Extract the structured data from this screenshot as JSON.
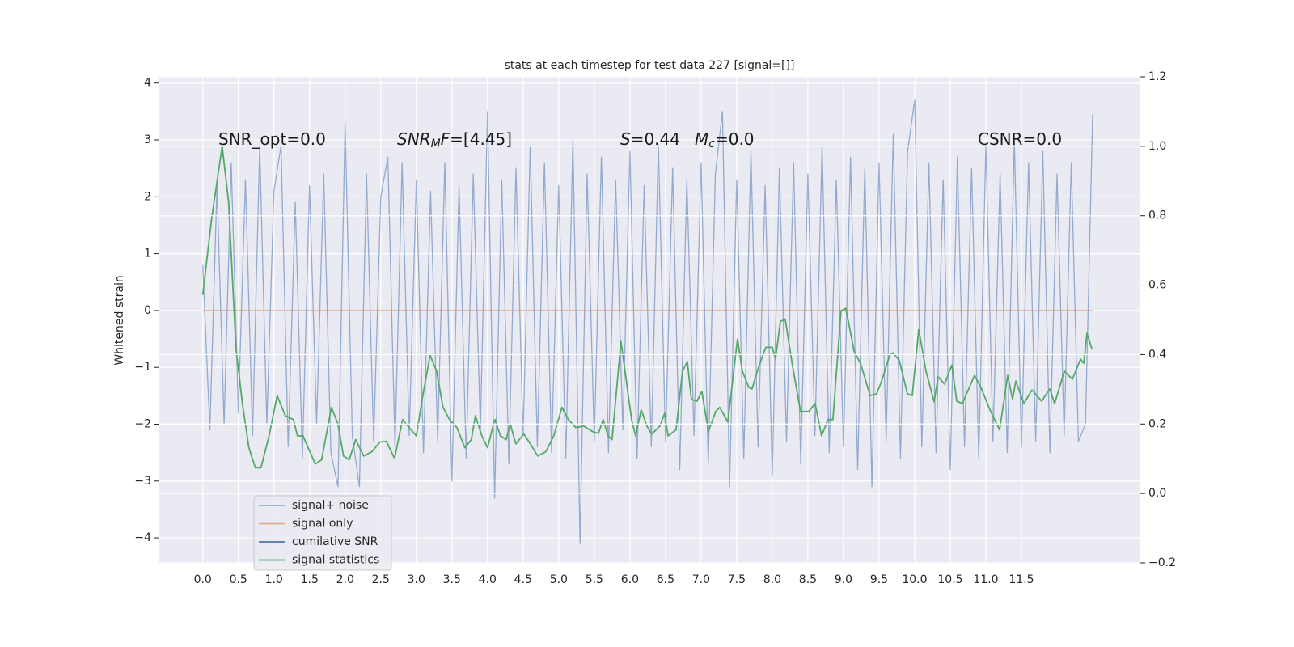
{
  "chart_data": {
    "type": "line",
    "title": "stats at each timestep for test data 227 [signal=[]]",
    "ylabel": "Whitened strain",
    "xlim": [
      -0.61,
      13.17
    ],
    "ylim": [
      -4.44,
      4.11
    ],
    "y2lim": [
      -0.2,
      1.2
    ],
    "grid": true,
    "legend": "lower left",
    "xticks": [
      {
        "value": 0,
        "label": "0.0"
      },
      {
        "value": 0.5,
        "label": "0.5"
      },
      {
        "value": 1,
        "label": "1.0"
      },
      {
        "value": 1.5,
        "label": "1.5"
      },
      {
        "value": 2,
        "label": "2.0"
      },
      {
        "value": 2.5,
        "label": "2.5"
      },
      {
        "value": 3,
        "label": "3.0"
      },
      {
        "value": 3.5,
        "label": "3.5"
      },
      {
        "value": 4,
        "label": "4.0"
      },
      {
        "value": 4.5,
        "label": "4.5"
      },
      {
        "value": 5,
        "label": "5.0"
      },
      {
        "value": 5.5,
        "label": "5.5"
      },
      {
        "value": 6,
        "label": "6.0"
      },
      {
        "value": 6.5,
        "label": "6.5"
      },
      {
        "value": 7,
        "label": "7.0"
      },
      {
        "value": 7.5,
        "label": "7.5"
      },
      {
        "value": 8,
        "label": "8.0"
      },
      {
        "value": 8.5,
        "label": "8.5"
      },
      {
        "value": 9,
        "label": "9.0"
      },
      {
        "value": 9.5,
        "label": "9.5"
      },
      {
        "value": 10,
        "label": "10.0"
      },
      {
        "value": 10.5,
        "label": "10.5"
      },
      {
        "value": 11,
        "label": "11.0"
      },
      {
        "value": 11.5,
        "label": "11.5"
      }
    ],
    "yticks": [
      {
        "value": -4,
        "label": "−4"
      },
      {
        "value": -3,
        "label": "−3"
      },
      {
        "value": -2,
        "label": "−2"
      },
      {
        "value": -1,
        "label": "−1"
      },
      0,
      1,
      2,
      3,
      4
    ],
    "y2ticks": [
      {
        "value": -0.2,
        "label": "−0.2"
      },
      {
        "value": 0,
        "label": "0.0"
      },
      0.2,
      0.4,
      0.6,
      0.8,
      {
        "value": 1,
        "label": "1.0"
      },
      1.2
    ],
    "annotations": [
      [
        "SNR_opt=0.0"
      ],
      [
        "SNR",
        "M",
        "F",
        "=[4.45]"
      ],
      [
        "S",
        "=0.44"
      ],
      [
        "M",
        "c",
        "=0.0"
      ],
      [
        "CSNR=0.0"
      ]
    ],
    "series": [
      {
        "name": "signal+ noise",
        "color": "#4c72b0",
        "axis": "y",
        "x": [
          0,
          0.1,
          0.2,
          0.3,
          0.4,
          0.5,
          0.6,
          0.7,
          0.8,
          0.9,
          1,
          1.1,
          1.2,
          1.3,
          1.4,
          1.5,
          1.6,
          1.7,
          1.8,
          1.9,
          2,
          2.1,
          2.2,
          2.3,
          2.4,
          2.5,
          2.6,
          2.7,
          2.8,
          2.9,
          3,
          3.1,
          3.2,
          3.3,
          3.4,
          3.5,
          3.6,
          3.7,
          3.8,
          3.9,
          4,
          4.1,
          4.2,
          4.3,
          4.4,
          4.5,
          4.6,
          4.7,
          4.8,
          4.9,
          5,
          5.1,
          5.2,
          5.3,
          5.4,
          5.5,
          5.6,
          5.7,
          5.8,
          5.9,
          6,
          6.1,
          6.2,
          6.3,
          6.4,
          6.5,
          6.6,
          6.7,
          6.8,
          6.9,
          7,
          7.1,
          7.2,
          7.3,
          7.4,
          7.5,
          7.6,
          7.7,
          7.8,
          7.9,
          8,
          8.1,
          8.2,
          8.3,
          8.4,
          8.5,
          8.6,
          8.7,
          8.8,
          8.9,
          9,
          9.1,
          9.2,
          9.3,
          9.4,
          9.5,
          9.6,
          9.7,
          9.8,
          9.9,
          10,
          10.1,
          10.2,
          10.3,
          10.4,
          10.5,
          10.6,
          10.7,
          10.8,
          10.9,
          11,
          11.1,
          11.2,
          11.3,
          11.4,
          11.5,
          11.6,
          11.7,
          11.8,
          11.9,
          12,
          12.1,
          12.2,
          12.3,
          12.4,
          12.5
        ],
        "values": [
          0.8,
          -2.1,
          2.2,
          -2.0,
          2.6,
          -1.8,
          2.3,
          -2.2,
          2.9,
          -2.0,
          2.1,
          2.9,
          -2.4,
          1.9,
          -2.6,
          2.2,
          -2.0,
          2.4,
          -2.5,
          -3.1,
          3.3,
          -2.2,
          -3.1,
          2.4,
          -2.3,
          2.0,
          2.7,
          -2.4,
          2.6,
          -2.2,
          2.3,
          -2.5,
          2.1,
          -2.3,
          2.6,
          -3.0,
          2.2,
          -2.6,
          2.4,
          -2.1,
          3.5,
          -3.3,
          2.3,
          -2.7,
          2.5,
          -2.2,
          2.9,
          -2.4,
          2.6,
          -2.5,
          2.2,
          -2.6,
          3.0,
          -4.1,
          2.4,
          -2.3,
          2.7,
          -2.5,
          2.3,
          -2.1,
          2.8,
          -2.6,
          2.2,
          -2.4,
          2.9,
          -2.3,
          2.5,
          -2.8,
          2.3,
          -2.2,
          2.6,
          -2.7,
          2.4,
          3.5,
          -3.1,
          2.3,
          -2.6,
          2.8,
          -2.4,
          2.2,
          -2.9,
          2.5,
          -2.3,
          2.6,
          -2.7,
          2.4,
          -2.2,
          2.9,
          -2.5,
          2.3,
          -2.4,
          2.7,
          -2.8,
          2.5,
          -3.1,
          2.6,
          -2.3,
          3.1,
          -2.6,
          2.8,
          3.7,
          -2.4,
          2.6,
          -2.5,
          2.3,
          -2.8,
          2.7,
          -2.4,
          2.5,
          -2.6,
          2.9,
          -2.3,
          2.4,
          -2.5,
          3.0,
          -2.4,
          2.6,
          -2.3,
          2.8,
          -2.5,
          2.4,
          -2.2,
          2.6,
          -2.3,
          -2.0,
          3.45
        ]
      },
      {
        "name": "signal only",
        "color": "#dd8452",
        "axis": "y",
        "x": [
          0,
          12.5
        ],
        "values": [
          0,
          0
        ]
      },
      {
        "name": "cumilative SNR",
        "color": "#4c72b0",
        "axis": "y2",
        "x": [],
        "values": []
      },
      {
        "name": "signal statistics",
        "color": "#55a868",
        "axis": "y2",
        "x": [
          0,
          0.125,
          0.273,
          0.364,
          0.466,
          0.557,
          0.648,
          0.739,
          0.818,
          0.932,
          1.045,
          1.159,
          1.273,
          1.33,
          1.409,
          1.58,
          1.67,
          1.807,
          1.898,
          1.977,
          2.057,
          2.148,
          2.261,
          2.375,
          2.489,
          2.58,
          2.693,
          2.807,
          2.898,
          3.0,
          3.091,
          3.193,
          3.284,
          3.375,
          3.466,
          3.568,
          3.682,
          3.773,
          3.83,
          3.92,
          4.0,
          4.102,
          4.182,
          4.261,
          4.318,
          4.398,
          4.511,
          4.602,
          4.705,
          4.818,
          4.932,
          5.045,
          5.136,
          5.239,
          5.352,
          5.477,
          5.557,
          5.625,
          5.693,
          5.75,
          5.875,
          5.955,
          6.023,
          6.08,
          6.159,
          6.239,
          6.307,
          6.42,
          6.489,
          6.534,
          6.648,
          6.739,
          6.807,
          6.864,
          6.943,
          7.011,
          7.102,
          7.205,
          7.261,
          7.375,
          7.511,
          7.58,
          7.67,
          7.716,
          7.807,
          7.909,
          8.0,
          8.045,
          8.114,
          8.182,
          8.284,
          8.398,
          8.511,
          8.602,
          8.693,
          8.784,
          8.852,
          8.966,
          9.034,
          9.148,
          9.239,
          9.375,
          9.466,
          9.545,
          9.648,
          9.693,
          9.784,
          9.898,
          9.966,
          10.057,
          10.159,
          10.273,
          10.33,
          10.42,
          10.523,
          10.591,
          10.67,
          10.841,
          10.932,
          11.057,
          11.193,
          11.307,
          11.375,
          11.42,
          11.534,
          11.648,
          11.784,
          11.898,
          11.966,
          12.102,
          12.216,
          12.33,
          12.375,
          12.42,
          12.489
        ],
        "values": [
          0.572,
          0.792,
          1.0,
          0.838,
          0.421,
          0.259,
          0.132,
          0.074,
          0.074,
          0.166,
          0.282,
          0.224,
          0.213,
          0.166,
          0.166,
          0.085,
          0.097,
          0.248,
          0.201,
          0.108,
          0.097,
          0.155,
          0.108,
          0.12,
          0.148,
          0.15,
          0.101,
          0.213,
          0.19,
          0.166,
          0.282,
          0.398,
          0.352,
          0.248,
          0.213,
          0.19,
          0.132,
          0.155,
          0.224,
          0.166,
          0.132,
          0.213,
          0.166,
          0.155,
          0.201,
          0.143,
          0.171,
          0.143,
          0.108,
          0.12,
          0.166,
          0.248,
          0.213,
          0.19,
          0.194,
          0.178,
          0.173,
          0.213,
          0.166,
          0.155,
          0.438,
          0.317,
          0.213,
          0.166,
          0.241,
          0.194,
          0.171,
          0.194,
          0.231,
          0.166,
          0.183,
          0.352,
          0.38,
          0.271,
          0.266,
          0.294,
          0.178,
          0.236,
          0.248,
          0.206,
          0.445,
          0.352,
          0.305,
          0.301,
          0.363,
          0.421,
          0.421,
          0.387,
          0.495,
          0.502,
          0.368,
          0.236,
          0.236,
          0.259,
          0.166,
          0.213,
          0.213,
          0.526,
          0.533,
          0.41,
          0.375,
          0.282,
          0.287,
          0.329,
          0.398,
          0.405,
          0.384,
          0.287,
          0.282,
          0.472,
          0.352,
          0.264,
          0.336,
          0.315,
          0.37,
          0.266,
          0.259,
          0.34,
          0.305,
          0.241,
          0.183,
          0.34,
          0.271,
          0.324,
          0.259,
          0.298,
          0.266,
          0.301,
          0.259,
          0.352,
          0.329,
          0.387,
          0.375,
          0.461,
          0.417
        ]
      }
    ]
  }
}
